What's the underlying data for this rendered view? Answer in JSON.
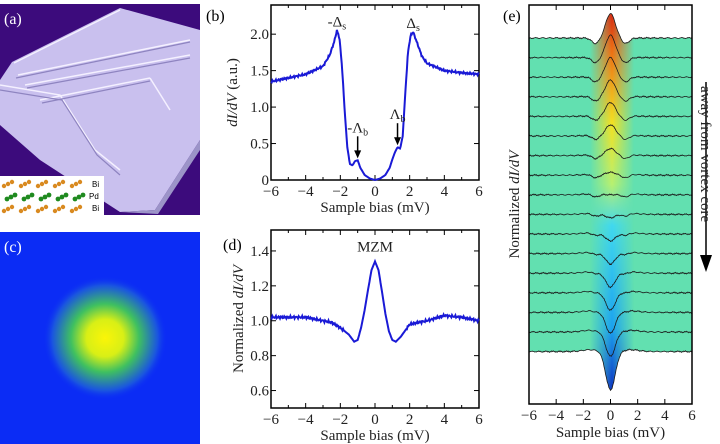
{
  "panels": {
    "a": {
      "label": "(a)",
      "inset_labels": [
        "Bi",
        "Pd",
        "Bi"
      ],
      "background": "#3c0b7c",
      "surface": "#c9c0ee"
    },
    "c": {
      "label": "(c)",
      "background": "#0b2cf5",
      "center": "#f6f20a"
    },
    "e": {
      "arrow_text": "away from vortex core"
    }
  },
  "chart_data": [
    {
      "id": "b",
      "type": "line",
      "panel_label": "(b)",
      "xlabel": "Sample bias (mV)",
      "ylabel_parts": [
        "dI/dV",
        " (a.u.)"
      ],
      "xlim": [
        -6,
        6
      ],
      "ylim": [
        0,
        2.4
      ],
      "xticks": [
        -6,
        -4,
        -2,
        0,
        2,
        4,
        6
      ],
      "xtick_labels": [
        "−6",
        "−4",
        "−2",
        "0",
        "2",
        "4",
        "6"
      ],
      "yticks": [
        0,
        0.5,
        1.0,
        1.5,
        2.0
      ],
      "ytick_labels": [
        "0",
        "0.5",
        "1.0",
        "1.5",
        "2.0"
      ],
      "color": "#1a1ad6",
      "x": [
        -6,
        -5,
        -4,
        -3,
        -2.6,
        -2.35,
        -2.2,
        -2.05,
        -1.9,
        -1.75,
        -1.6,
        -1.45,
        -1.3,
        -1.15,
        -1.0,
        -0.85,
        -0.6,
        -0.3,
        0,
        0.3,
        0.6,
        0.85,
        1.0,
        1.15,
        1.3,
        1.45,
        1.6,
        1.75,
        1.9,
        2.05,
        2.2,
        2.4,
        2.7,
        3,
        4,
        5,
        6
      ],
      "y": [
        1.35,
        1.4,
        1.45,
        1.56,
        1.72,
        1.9,
        2.05,
        1.95,
        1.55,
        0.95,
        0.45,
        0.22,
        0.2,
        0.26,
        0.27,
        0.17,
        0.07,
        0.02,
        0.0,
        0.02,
        0.07,
        0.17,
        0.28,
        0.38,
        0.45,
        0.43,
        0.6,
        1.2,
        1.75,
        1.98,
        2.03,
        1.9,
        1.7,
        1.6,
        1.5,
        1.47,
        1.45
      ],
      "annotations": [
        {
          "text": "-Δ",
          "sub": "s",
          "x": -2.2,
          "y": 2.05,
          "arrow": false
        },
        {
          "text": "Δ",
          "sub": "s",
          "x": 2.2,
          "y": 2.03,
          "arrow": false
        },
        {
          "text": "-Λ",
          "sub": "b",
          "x": -1.0,
          "y": 0.27,
          "arrow": true
        },
        {
          "text": "Λ",
          "sub": "b",
          "x": 1.3,
          "y": 0.45,
          "arrow": true
        }
      ]
    },
    {
      "id": "d",
      "type": "line",
      "panel_label": "(d)",
      "xlabel": "Sample bias (mV)",
      "ylabel_parts": [
        "Normalized ",
        "dI/dV"
      ],
      "xlim": [
        -6,
        6
      ],
      "ylim": [
        0.5,
        1.52
      ],
      "xticks": [
        -6,
        -4,
        -2,
        0,
        2,
        4,
        6
      ],
      "xtick_labels": [
        "−6",
        "−4",
        "−2",
        "0",
        "2",
        "4",
        "6"
      ],
      "yticks": [
        0.6,
        0.8,
        1.0,
        1.2,
        1.4
      ],
      "ytick_labels": [
        "0.6",
        "0.8",
        "1.0",
        "1.2",
        "1.4"
      ],
      "color": "#1a1ad6",
      "x": [
        -6,
        -5,
        -4,
        -3,
        -2.5,
        -2,
        -1.5,
        -1.2,
        -1.0,
        -0.8,
        -0.6,
        -0.4,
        -0.2,
        0,
        0.2,
        0.4,
        0.6,
        0.8,
        1.0,
        1.2,
        1.5,
        2,
        2.5,
        3,
        4,
        5,
        6
      ],
      "y": [
        1.02,
        1.02,
        1.02,
        1.0,
        0.99,
        0.96,
        0.92,
        0.88,
        0.89,
        0.96,
        1.06,
        1.18,
        1.29,
        1.34,
        1.29,
        1.17,
        1.04,
        0.94,
        0.89,
        0.88,
        0.91,
        0.98,
        0.99,
        1.0,
        1.03,
        1.02,
        1.0
      ],
      "annotations": [
        {
          "text": "MZM",
          "x": 0,
          "y": 1.34
        }
      ]
    },
    {
      "id": "e",
      "type": "line",
      "panel_label": "(e)",
      "xlabel": "Sample bias (mV)",
      "ylabel_parts": [
        "Normalized ",
        "dI/dV"
      ],
      "xlim": [
        -6,
        6
      ],
      "xticks": [
        -6,
        -4,
        -2,
        0,
        2,
        4,
        6
      ],
      "xtick_labels": [
        "−6",
        "−4",
        "−2",
        "0",
        "2",
        "4",
        "6"
      ],
      "color": "#1a1a1a",
      "waterfall": true,
      "zero_bias_amplitude": [
        1.35,
        1.32,
        1.28,
        1.24,
        1.2,
        1.16,
        1.1,
        1.04,
        1.0,
        0.95,
        0.9,
        0.85,
        0.8,
        0.75,
        0.7,
        0.65,
        0.45
      ]
    }
  ]
}
